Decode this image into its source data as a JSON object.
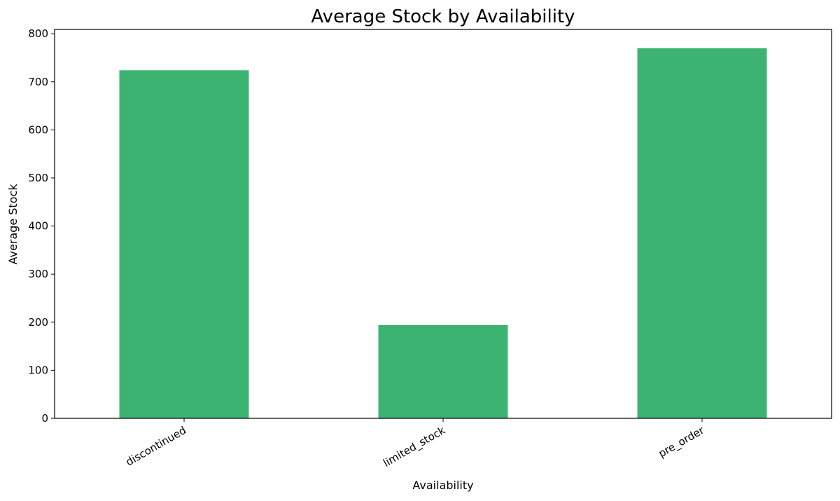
{
  "chart_data": {
    "type": "bar",
    "title": "Average Stock by Availability",
    "x_label": "Availability",
    "y_label": "Average Stock",
    "categories": [
      "discontinued",
      "limited_stock",
      "pre_order"
    ],
    "values": [
      724,
      194,
      770
    ],
    "color": "#3cb371",
    "ylim": [
      0,
      809
    ],
    "yticks": [
      0,
      100,
      200,
      300,
      400,
      500,
      600,
      700,
      800
    ],
    "grid": false
  }
}
